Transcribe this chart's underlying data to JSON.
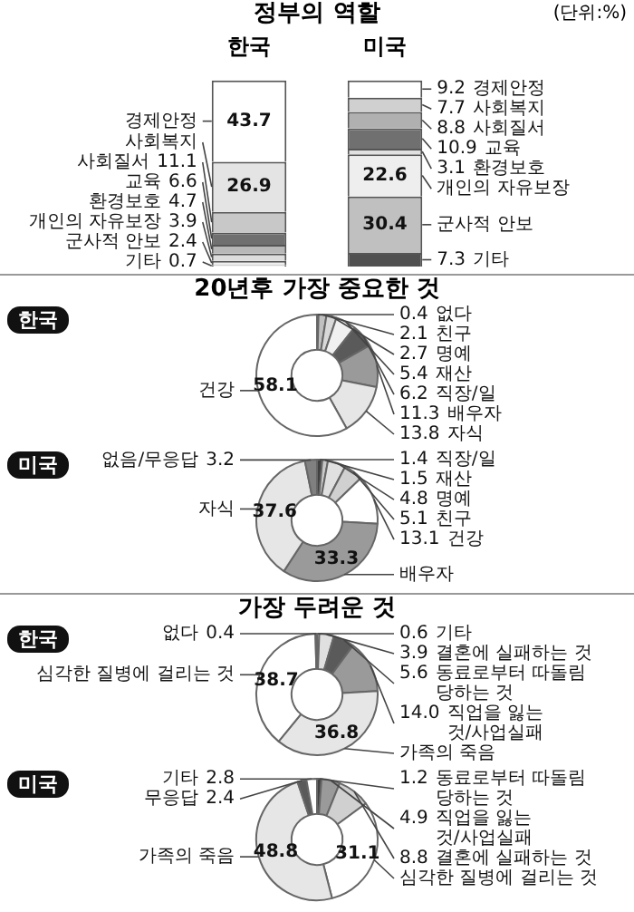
{
  "chart_data": [
    {
      "type": "bar",
      "title": "정부의 역할",
      "annotations": [
        "(단위:%)"
      ],
      "categories": [
        "한국",
        "미국"
      ],
      "stacked": true,
      "data_labels": true,
      "tick_labels": "x",
      "series": [
        {
          "name": "기타",
          "values": [
            0.7,
            7.3
          ],
          "colors": [
            "#ffffff",
            "#505050"
          ]
        },
        {
          "name": "군사적 안보",
          "values": [
            2.4,
            30.4
          ],
          "colors": [
            "#eeeeee",
            "#c0c0c0"
          ]
        },
        {
          "name": "개인의 자유보장",
          "values": [
            3.9,
            22.6
          ],
          "colors": [
            "#dddddd",
            "#eeeeee"
          ]
        },
        {
          "name": "환경보호",
          "values": [
            4.7,
            3.1
          ],
          "colors": [
            "#b8b8b8",
            "#e0e0e0"
          ]
        },
        {
          "name": "교육",
          "values": [
            6.6,
            10.9
          ],
          "colors": [
            "#707070",
            "#707070"
          ]
        },
        {
          "name": "사회질서",
          "values": [
            11.1,
            8.8
          ],
          "colors": [
            "#c8c8c8",
            "#b0b0b0"
          ]
        },
        {
          "name": "사회복지",
          "values": [
            26.9,
            7.7
          ],
          "colors": [
            "#e4e4e4",
            "#d0d0d0"
          ]
        },
        {
          "name": "경제안정",
          "values": [
            43.7,
            9.2
          ],
          "colors": [
            "#ffffff",
            "#ffffff"
          ]
        }
      ]
    },
    {
      "type": "donut",
      "title": "20년후 가장 중요한 것",
      "subtitle": "한국",
      "data_labels": true,
      "categories": [
        "없다",
        "친구",
        "명예",
        "재산",
        "직장/일",
        "배우자",
        "자식",
        "건강"
      ],
      "values": [
        0.4,
        2.1,
        2.7,
        5.4,
        6.2,
        11.3,
        13.8,
        58.1
      ],
      "colors": [
        "#808080",
        "#c0c0c0",
        "#d8d8d8",
        "#f0f0f0",
        "#5a5a5a",
        "#9a9a9a",
        "#e6e6e6",
        "#ffffff"
      ]
    },
    {
      "type": "donut",
      "subtitle": "미국",
      "data_labels": true,
      "categories": [
        "직장/일",
        "재산",
        "명예",
        "친구",
        "건강",
        "배우자",
        "자식",
        "없음/무응답"
      ],
      "values": [
        1.4,
        1.5,
        4.8,
        5.1,
        13.1,
        33.3,
        37.6,
        3.2
      ],
      "colors": [
        "#404040",
        "#c8c8c8",
        "#e0e0e0",
        "#d0d0d0",
        "#ffffff",
        "#9a9a9a",
        "#e6e6e6",
        "#808080"
      ]
    },
    {
      "type": "donut",
      "title": "가장 두려운 것",
      "subtitle": "한국",
      "value_labels": [
        "0.6",
        "3.9",
        "5.6",
        "14.0",
        "36.8",
        "38.7",
        "0.4"
      ],
      "categories": [
        "기타",
        "결혼에 실패하는 것",
        "동료로부터 따돌림 당하는 것",
        "직업을 잃는 것/사업실패",
        "가족의 죽음",
        "심각한 질병에 걸리는 것",
        "없다"
      ],
      "values": [
        0.6,
        3.9,
        5.6,
        14.0,
        36.8,
        38.7,
        0.4
      ],
      "colors": [
        "#ffffff",
        "#e0e0e0",
        "#5a5a5a",
        "#9a9a9a",
        "#e6e6e6",
        "#ffffff",
        "#404040"
      ]
    },
    {
      "type": "donut",
      "subtitle": "미국",
      "data_labels": true,
      "categories": [
        "동료로부터 따돌림 당하는 것",
        "직업을 잃는 것/사업실패",
        "결혼에 실패하는 것",
        "심각한 질병에 걸리는 것",
        "가족의 죽음",
        "무응답",
        "기타"
      ],
      "values": [
        1.2,
        4.9,
        8.8,
        31.1,
        48.8,
        2.4,
        2.8
      ],
      "colors": [
        "#404040",
        "#9a9a9a",
        "#d0d0d0",
        "#ffffff",
        "#e6e6e6",
        "#5a5a5a",
        "#ffffff"
      ]
    }
  ]
}
